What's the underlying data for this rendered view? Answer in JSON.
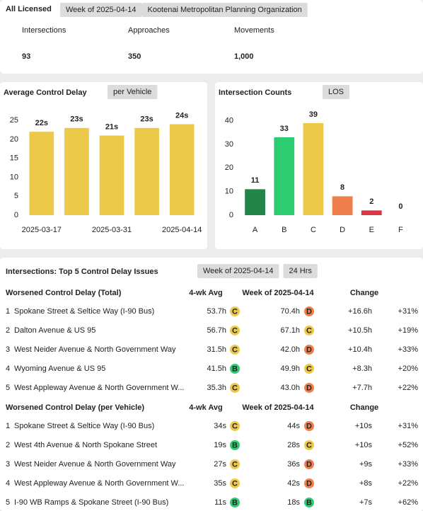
{
  "header": {
    "title": "All Licensed",
    "tags": [
      "Week of 2025-04-14",
      "Kootenai Metropolitan Planning Organization"
    ]
  },
  "kpis": [
    {
      "label": "Intersections",
      "value": "93"
    },
    {
      "label": "Approaches",
      "value": "350"
    },
    {
      "label": "Movements",
      "value": "1,000"
    }
  ],
  "chart_data": [
    {
      "type": "bar",
      "title": "Average Control Delay",
      "tag": "per Vehicle",
      "categories": [
        "2025-03-17",
        null,
        "2025-03-31",
        null,
        "2025-04-14"
      ],
      "values": [
        22,
        23,
        21,
        23,
        24
      ],
      "value_labels": [
        "22s",
        "23s",
        "21s",
        "23s",
        "24s"
      ],
      "color": "#ecc94b",
      "ylim": [
        0,
        28
      ],
      "yticks": [
        0,
        5,
        10,
        15,
        20,
        25
      ],
      "grid": false
    },
    {
      "type": "bar",
      "title": "Intersection Counts",
      "tag": "LOS",
      "categories": [
        "A",
        "B",
        "C",
        "D",
        "E",
        "F"
      ],
      "values": [
        11,
        33,
        39,
        8,
        2,
        0
      ],
      "colors": [
        "#23854a",
        "#2ecc71",
        "#ecc94b",
        "#ef7f4c",
        "#dc3545",
        "#999999"
      ],
      "ylim": [
        0,
        45
      ],
      "yticks": [
        0,
        10,
        20,
        30,
        40
      ],
      "grid": false
    }
  ],
  "table": {
    "title": "Intersections: Top 5 Control Delay Issues",
    "tags": [
      "Week of 2025-04-14",
      "24 Hrs"
    ],
    "groups": [
      {
        "columns": [
          "Worsened Control Delay (Total)",
          "4-wk Avg",
          "Week of 2025-04-14",
          "Change"
        ],
        "rows": [
          [
            "1",
            "Spokane Street & Seltice Way (I-90 Bus)",
            "53.7h",
            "C",
            "70.4h",
            "D",
            "+16.6h",
            "+31%"
          ],
          [
            "2",
            "Dalton Avenue & US 95",
            "56.7h",
            "C",
            "67.1h",
            "C",
            "+10.5h",
            "+19%"
          ],
          [
            "3",
            "West Neider Avenue & North Government Way",
            "31.5h",
            "C",
            "42.0h",
            "D",
            "+10.4h",
            "+33%"
          ],
          [
            "4",
            "Wyoming Avenue & US 95",
            "41.5h",
            "B",
            "49.9h",
            "C",
            "+8.3h",
            "+20%"
          ],
          [
            "5",
            "West Appleway Avenue & North Government W...",
            "35.3h",
            "C",
            "43.0h",
            "D",
            "+7.7h",
            "+22%"
          ]
        ]
      },
      {
        "columns": [
          "Worsened Control Delay (per Vehicle)",
          "4-wk Avg",
          "Week of 2025-04-14",
          "Change"
        ],
        "rows": [
          [
            "1",
            "Spokane Street & Seltice Way (I-90 Bus)",
            "34s",
            "C",
            "44s",
            "D",
            "+10s",
            "+31%"
          ],
          [
            "2",
            "West 4th Avenue & North Spokane Street",
            "19s",
            "B",
            "28s",
            "C",
            "+10s",
            "+52%"
          ],
          [
            "3",
            "West Neider Avenue & North Government Way",
            "27s",
            "C",
            "36s",
            "D",
            "+9s",
            "+33%"
          ],
          [
            "4",
            "West Appleway Avenue & North Government W...",
            "35s",
            "C",
            "42s",
            "D",
            "+8s",
            "+22%"
          ],
          [
            "5",
            "I-90 WB Ramps & Spokane Street (I-90 Bus)",
            "11s",
            "B",
            "18s",
            "B",
            "+7s",
            "+62%"
          ]
        ]
      }
    ]
  }
}
